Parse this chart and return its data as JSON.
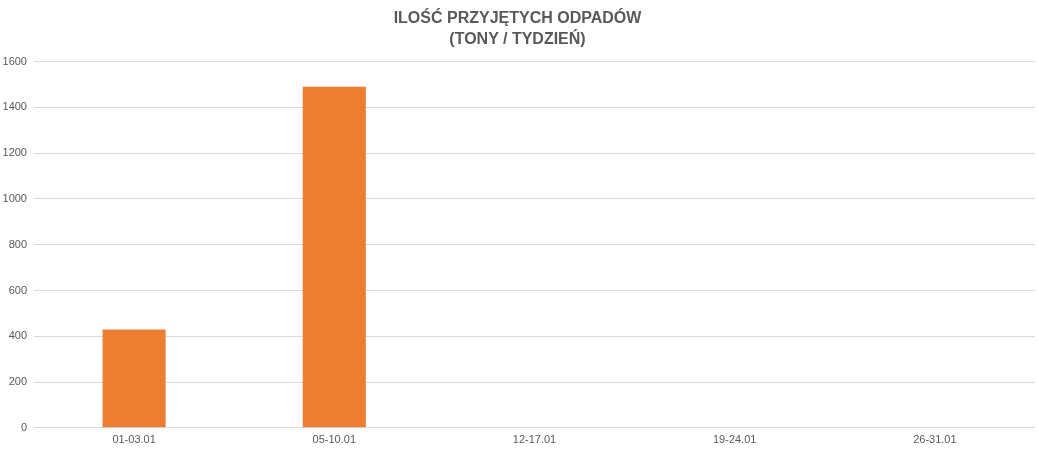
{
  "chart_data": {
    "type": "bar",
    "title": "ILOŚĆ PRZYJĘTYCH ODPADÓW\n(TONY / TYDZIEŃ)",
    "categories": [
      "01-03.01",
      "05-10.01",
      "12-17.01",
      "19-24.01",
      "26-31.01"
    ],
    "values": [
      430,
      1490,
      null,
      null,
      null
    ],
    "color": "#ed7d31",
    "ylim": [
      0,
      1600
    ],
    "yticks": [
      0,
      200,
      400,
      600,
      800,
      1000,
      1200,
      1400,
      1600
    ],
    "grid": "y"
  }
}
